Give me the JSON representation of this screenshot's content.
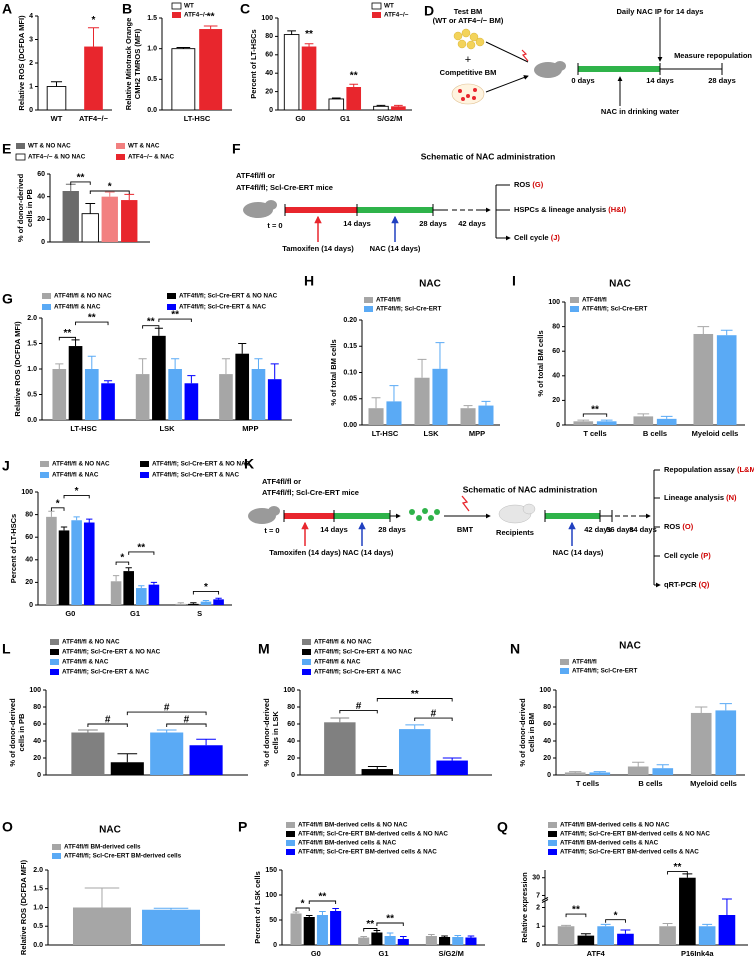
{
  "chart_data": [
    {
      "panel": "A",
      "type": "bar",
      "y_label": "Relative ROS (DCFDA MFI)",
      "categories": [
        "WT",
        "ATF4−/−"
      ],
      "values": [
        1.0,
        2.7
      ],
      "errors": [
        0.2,
        0.8
      ],
      "colors": [
        "#ffffff",
        "#e8262d"
      ],
      "ylim": [
        0,
        4
      ],
      "yticks": [
        0,
        1,
        2,
        3,
        4
      ],
      "annotations": [
        "*"
      ]
    },
    {
      "panel": "B",
      "type": "bar",
      "y_label": [
        "Relative Mitotrack Orange",
        "CMH2 TMROS (MFI)"
      ],
      "categories": [
        "LT-HSC"
      ],
      "series": [
        {
          "name": "WT",
          "color": "#ffffff",
          "values": [
            1.0
          ],
          "errors": [
            0.02
          ]
        },
        {
          "name": "ATF4−/−",
          "color": "#e8262d",
          "values": [
            1.32
          ],
          "errors": [
            0.05
          ]
        }
      ],
      "ylim": [
        0,
        1.5
      ],
      "yticks": [
        {
          "value": 0,
          "label": "0.0"
        },
        {
          "value": 0.5,
          "label": "0.5"
        },
        {
          "value": 1,
          "label": "1.0"
        },
        {
          "value": 1.5,
          "label": "1.5"
        }
      ],
      "annotations": [
        "**"
      ]
    },
    {
      "panel": "C",
      "type": "bar",
      "y_label": "Percent of LT-HSCs",
      "categories": [
        "G0",
        "G1",
        "S/G2/M"
      ],
      "series": [
        {
          "name": "WT",
          "color": "#ffffff",
          "values": [
            82,
            12,
            4
          ],
          "errors": [
            4,
            1,
            1
          ]
        },
        {
          "name": "ATF4−/−",
          "color": "#e8262d",
          "values": [
            69,
            25,
            4
          ],
          "errors": [
            3,
            3,
            1
          ]
        }
      ],
      "ylim": [
        0,
        100
      ],
      "yticks": [
        0,
        20,
        40,
        60,
        80,
        100
      ],
      "annotations": [
        "**",
        "**"
      ]
    },
    {
      "panel": "E",
      "type": "bar",
      "y_label": [
        "% of donor-derived",
        "cells in PB"
      ],
      "categories": [
        null
      ],
      "series": [
        {
          "name": "WT & NO NAC",
          "color": "#6b6b6b",
          "values": [
            45
          ],
          "errors": [
            6
          ]
        },
        {
          "name": "ATF4−/− & NO NAC",
          "color": "#ffffff",
          "values": [
            25
          ],
          "errors": [
            9
          ]
        },
        {
          "name": "WT & NAC",
          "color": "#f28080",
          "values": [
            40
          ],
          "errors": [
            4
          ]
        },
        {
          "name": "ATF4−/− & NAC",
          "color": "#e8262d",
          "values": [
            37
          ],
          "errors": [
            5
          ]
        }
      ],
      "ylim": [
        0,
        60
      ],
      "yticks": [
        0,
        20,
        40,
        60
      ],
      "annotations": [
        "**",
        "*"
      ]
    },
    {
      "panel": "G",
      "type": "bar",
      "y_label": "Relative ROS (DCFDA MFI)",
      "categories": [
        "LT-HSC",
        "LSK",
        "MPP"
      ],
      "series": [
        {
          "name": "ATF4fl/fl & NO NAC",
          "color": "#a6a6a6",
          "values": [
            1.0,
            0.9,
            0.9
          ],
          "errors": [
            0.1,
            0.3,
            0.3
          ]
        },
        {
          "name": "ATF4fl/fl; Scl-Cre-ERT & NO NAC",
          "color": "#000000",
          "values": [
            1.45,
            1.65,
            1.3
          ],
          "errors": [
            0.12,
            0.15,
            0.2
          ]
        },
        {
          "name": "ATF4fl/fl & NAC",
          "color": "#5aaaf5",
          "values": [
            1.0,
            1.0,
            1.0
          ],
          "errors": [
            0.25,
            0.2,
            0.2
          ]
        },
        {
          "name": "ATF4fl/fl; Scl-Cre-ERT & NAC",
          "color": "#0000ff",
          "values": [
            0.72,
            0.72,
            0.8
          ],
          "errors": [
            0.05,
            0.15,
            0.3
          ]
        }
      ],
      "ylim": [
        0,
        2
      ],
      "yticks": [
        {
          "value": 0,
          "label": "0.0"
        },
        {
          "value": 0.5,
          "label": "0.5"
        },
        {
          "value": 1,
          "label": "1.0"
        },
        {
          "value": 1.5,
          "label": "1.5"
        },
        {
          "value": 2,
          "label": "2.0"
        }
      ],
      "annotations": [
        "**",
        "**",
        "**",
        "**"
      ]
    },
    {
      "panel": "H",
      "type": "bar",
      "title": "NAC",
      "y_label": "% of total BM cells",
      "categories": [
        "LT-HSC",
        "LSK",
        "MPP"
      ],
      "series": [
        {
          "name": "ATF4fl/fl",
          "color": "#a6a6a6",
          "values": [
            0.032,
            0.09,
            0.032
          ],
          "errors": [
            0.02,
            0.035,
            0.005
          ]
        },
        {
          "name": "ATF4fl/fl; Scl-Cre-ERT",
          "color": "#5aaaf5",
          "values": [
            0.045,
            0.107,
            0.037
          ],
          "errors": [
            0.03,
            0.05,
            0.008
          ]
        }
      ],
      "ylim": [
        0,
        0.2
      ],
      "yticks": [
        {
          "value": 0,
          "label": "0.00"
        },
        {
          "value": 0.05,
          "label": "0.05"
        },
        {
          "value": 0.1,
          "label": "0.10"
        },
        {
          "value": 0.15,
          "label": "0.15"
        },
        {
          "value": 0.2,
          "label": "0.20"
        }
      ]
    },
    {
      "panel": "I",
      "type": "bar",
      "title": "NAC",
      "y_label": "% of total BM cells",
      "categories": [
        "T cells",
        "B cells",
        "Myeloid cells"
      ],
      "series": [
        {
          "name": "ATF4fl/fl",
          "color": "#a6a6a6",
          "values": [
            3,
            7,
            74
          ],
          "errors": [
            1,
            2,
            6
          ]
        },
        {
          "name": "ATF4fl/fl; Scl-Cre-ERT",
          "color": "#5aaaf5",
          "values": [
            3,
            5,
            73
          ],
          "errors": [
            1,
            2,
            4
          ]
        }
      ],
      "ylim": [
        0,
        100
      ],
      "yticks": [
        0,
        20,
        40,
        60,
        80,
        100
      ],
      "annotations": [
        "**"
      ]
    },
    {
      "panel": "J",
      "type": "bar",
      "y_label": "Percent of LT-HSCs",
      "categories": [
        "G0",
        "G1",
        "S"
      ],
      "series": [
        {
          "name": "ATF4fl/fl & NO NAC",
          "color": "#a6a6a6",
          "values": [
            78,
            21,
            1
          ],
          "errors": [
            5,
            5,
            1
          ]
        },
        {
          "name": "ATF4fl/fl; Scl-Cre-ERT & NO NAC",
          "color": "#000000",
          "values": [
            66,
            30,
            1
          ],
          "errors": [
            3,
            3,
            1
          ]
        },
        {
          "name": "ATF4fl/fl & NAC",
          "color": "#5aaaf5",
          "values": [
            75,
            15,
            3
          ],
          "errors": [
            3,
            2,
            1
          ]
        },
        {
          "name": "ATF4fl/fl; Scl-Cre-ERT & NAC",
          "color": "#0000ff",
          "values": [
            73,
            18,
            5
          ],
          "errors": [
            3,
            2,
            1
          ]
        }
      ],
      "ylim": [
        0,
        100
      ],
      "yticks": [
        0,
        20,
        40,
        60,
        80,
        100
      ],
      "annotations": [
        "*",
        "*",
        "*",
        "**",
        "*"
      ]
    },
    {
      "panel": "L",
      "type": "bar",
      "y_label": [
        "% of donor-derived",
        "cells in PB"
      ],
      "categories": [
        null
      ],
      "series": [
        {
          "name": "ATF4fl/fl & NO NAC",
          "color": "#808080",
          "values": [
            50
          ],
          "errors": [
            3
          ]
        },
        {
          "name": "ATF4fl/fl; Scl-Cre-ERT & NO NAC",
          "color": "#000000",
          "values": [
            15
          ],
          "errors": [
            10
          ]
        },
        {
          "name": "ATF4fl/fl & NAC",
          "color": "#5aaaf5",
          "values": [
            50
          ],
          "errors": [
            3
          ]
        },
        {
          "name": "ATF4fl/fl; Scl-Cre-ERT & NAC",
          "color": "#0000ff",
          "values": [
            35
          ],
          "errors": [
            7
          ]
        }
      ],
      "ylim": [
        0,
        100
      ],
      "yticks": [
        0,
        20,
        40,
        60,
        80,
        100
      ],
      "annotations": [
        "#",
        "#",
        "#"
      ]
    },
    {
      "panel": "M",
      "type": "bar",
      "y_label": [
        "% of donor-derived",
        "cells in LSK"
      ],
      "categories": [
        null
      ],
      "series": [
        {
          "name": "ATF4fl/fl & NO NAC",
          "color": "#808080",
          "values": [
            62
          ],
          "errors": [
            5
          ]
        },
        {
          "name": "ATF4fl/fl; Scl-Cre-ERT & NO NAC",
          "color": "#000000",
          "values": [
            7
          ],
          "errors": [
            3
          ]
        },
        {
          "name": "ATF4fl/fl & NAC",
          "color": "#5aaaf5",
          "values": [
            54
          ],
          "errors": [
            5
          ]
        },
        {
          "name": "ATF4fl/fl; Scl-Cre-ERT & NAC",
          "color": "#0000ff",
          "values": [
            17
          ],
          "errors": [
            3
          ]
        }
      ],
      "ylim": [
        0,
        100
      ],
      "yticks": [
        0,
        20,
        40,
        60,
        80,
        100
      ],
      "annotations": [
        "#",
        "**",
        "#"
      ]
    },
    {
      "panel": "N",
      "type": "bar",
      "title": "NAC",
      "y_label": [
        "% of donor-derived",
        "cells in BM"
      ],
      "categories": [
        "T cells",
        "B cells",
        "Myeloid cells"
      ],
      "series": [
        {
          "name": "ATF4fl/fl",
          "color": "#a6a6a6",
          "values": [
            3,
            10,
            73
          ],
          "errors": [
            1,
            5,
            7
          ]
        },
        {
          "name": "ATF4fl/fl; Scl-Cre-ERT",
          "color": "#5aaaf5",
          "values": [
            3,
            8,
            76
          ],
          "errors": [
            1,
            4,
            8
          ]
        }
      ],
      "ylim": [
        0,
        100
      ],
      "yticks": [
        0,
        20,
        40,
        60,
        80,
        100
      ]
    },
    {
      "panel": "O",
      "type": "bar",
      "title": "NAC",
      "y_label": "Relative ROS (DCFDA MFI)",
      "categories": [
        null
      ],
      "series": [
        {
          "name": "ATF4fl/fl BM-derived cells",
          "color": "#a6a6a6",
          "values": [
            1.0
          ],
          "errors": [
            0.52
          ]
        },
        {
          "name": "ATF4fl/fl; Scl-Cre-ERT BM-derived cells",
          "color": "#5aaaf5",
          "values": [
            0.94
          ],
          "errors": [
            0.04
          ]
        }
      ],
      "ylim": [
        0,
        2
      ],
      "yticks": [
        {
          "value": 0,
          "label": "0.0"
        },
        {
          "value": 0.5,
          "label": "0.5"
        },
        {
          "value": 1,
          "label": "1.0"
        },
        {
          "value": 1.5,
          "label": "1.5"
        },
        {
          "value": 2,
          "label": "2.0"
        }
      ]
    },
    {
      "panel": "P",
      "type": "bar",
      "y_label": "Percent of LSK cells",
      "categories": [
        "G0",
        "G1",
        "S/G2/M"
      ],
      "series": [
        {
          "name": "ATF4fl/fl BM-derived cells & NO NAC",
          "color": "#a6a6a6",
          "values": [
            63,
            15,
            18
          ],
          "errors": [
            3,
            2,
            3
          ]
        },
        {
          "name": "ATF4fl/fl; Scl-Cre-ERT BM-derived cells & NO NAC",
          "color": "#000000",
          "values": [
            56,
            25,
            16
          ],
          "errors": [
            3,
            4,
            2
          ]
        },
        {
          "name": "ATF4fl/fl BM-derived cells & NAC",
          "color": "#5aaaf5",
          "values": [
            60,
            18,
            16
          ],
          "errors": [
            7,
            6,
            3
          ]
        },
        {
          "name": "ATF4fl/fl; Scl-Cre-ERT BM-derived cells & NAC",
          "color": "#0000ff",
          "values": [
            68,
            12,
            15
          ],
          "errors": [
            5,
            5,
            3
          ]
        }
      ],
      "ylim": [
        0,
        150
      ],
      "yticks": [
        0,
        50,
        100,
        150
      ],
      "annotations": [
        "*",
        "**",
        "**",
        "**"
      ]
    },
    {
      "panel": "Q",
      "type": "bar",
      "y_label": "Relative expression",
      "categories": [
        "ATF4",
        "P16Ink4a"
      ],
      "series": [
        {
          "name": "ATF4fl/fl BM-derived cells & NO NAC",
          "color": "#a6a6a6",
          "values": [
            1.0,
            1.0
          ],
          "errors": [
            0.05,
            0.15
          ]
        },
        {
          "name": "ATF4fl/fl; Scl-Cre-ERT BM-derived cells & NO NAC",
          "color": "#000000",
          "values": [
            0.5,
            30
          ],
          "errors": [
            0.1,
            5
          ]
        },
        {
          "name": "ATF4fl/fl BM-derived cells & NAC",
          "color": "#5aaaf5",
          "values": [
            1.0,
            1.0
          ],
          "errors": [
            0.1,
            0.1
          ]
        },
        {
          "name": "ATF4fl/fl; Scl-Cre-ERT BM-derived cells & NAC",
          "color": "#0000ff",
          "values": [
            0.6,
            1.6
          ],
          "errors": [
            0.2,
            0.8
          ]
        }
      ],
      "ylim": [
        0,
        40
      ],
      "ybreak": [
        2.2,
        6
      ],
      "yticks": [
        0,
        1,
        2,
        7,
        30
      ],
      "annotations": [
        "**",
        "*",
        "**"
      ]
    }
  ],
  "diagrams": {
    "D": {
      "panel": "D",
      "test_bm": "Test BM",
      "test_bm_note": "(WT or ATF4−/− BM)",
      "plus": "+",
      "competitive_bm": "Competitive BM",
      "daily_nac": "Daily NAC IP for 14 days",
      "day_0": "0 days",
      "day_14": "14 days",
      "day_28": "28 days",
      "measure": "Measure repopulation",
      "water": "NAC in drinking water"
    },
    "F": {
      "panel": "F",
      "title": "Schematic of NAC administration",
      "mice": [
        "ATF4fl/fl or",
        "ATF4fl/fl; Scl-Cre-ERT mice"
      ],
      "t0": "t = 0",
      "days": [
        "14 days",
        "28 days",
        "42 days"
      ],
      "tamoxifen": "Tamoxifen (14 days)",
      "nac": "NAC (14 days)",
      "outputs": [
        {
          "label": "ROS",
          "ref": "(G)"
        },
        {
          "label": "HSPCs & lineage analysis",
          "ref": "(H&I)"
        },
        {
          "label": "Cell cycle",
          "ref": "(J)"
        }
      ]
    },
    "K": {
      "panel": "K",
      "title": "Schematic of NAC administration",
      "mice": [
        "ATF4fl/fl or",
        "ATF4fl/fl; Scl-Cre-ERT mice"
      ],
      "t0": "t = 0",
      "days": [
        "14 days",
        "28 days",
        "42 days",
        "56 days",
        "84 days"
      ],
      "tamoxifen": "Tamoxifen (14 days)",
      "nac": [
        "NAC (14 days)",
        "NAC (14 days)"
      ],
      "bmt": "BMT",
      "recipients": "Recipients",
      "outputs": [
        {
          "label": "Repopulation assay",
          "ref": "(L&M)"
        },
        {
          "label": "Lineage analysis",
          "ref": "(N)"
        },
        {
          "label": "ROS",
          "ref": "(O)"
        },
        {
          "label": "Cell cycle",
          "ref": "(P)"
        },
        {
          "label": "qRT-PCR",
          "ref": "(Q)"
        }
      ]
    }
  }
}
